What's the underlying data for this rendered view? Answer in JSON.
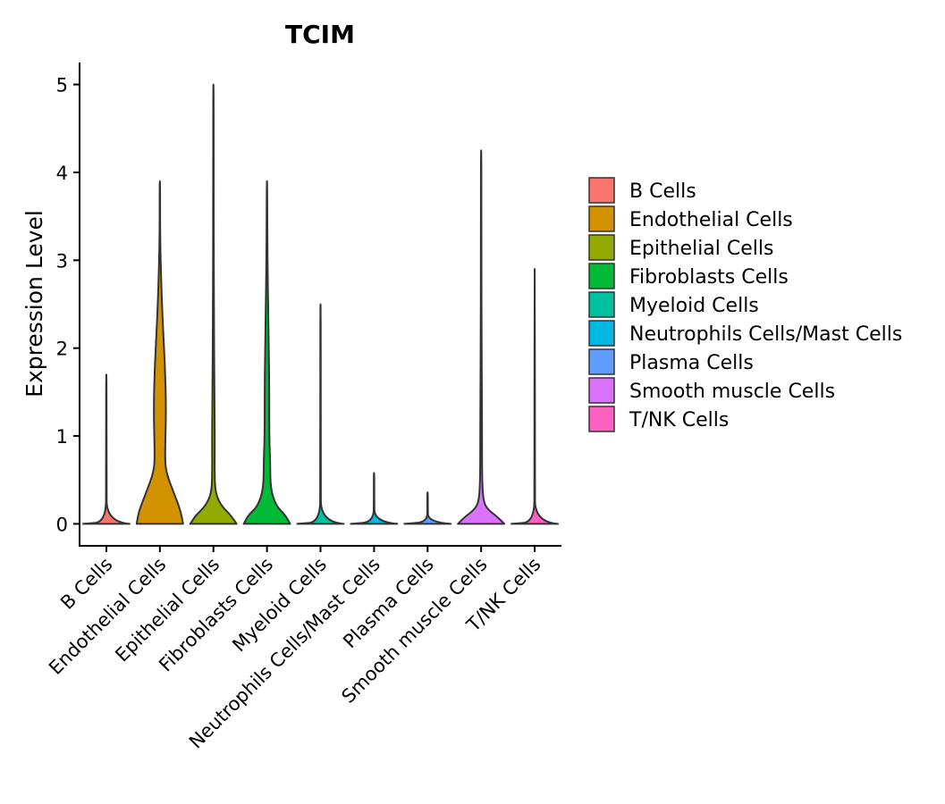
{
  "chart_data": {
    "type": "violin",
    "title": "TCIM",
    "xlabel": "",
    "ylabel": "Expression Level",
    "ylim": [
      -0.25,
      5.25
    ],
    "yticks": [
      0,
      1,
      2,
      3,
      4,
      5
    ],
    "categories": [
      "B Cells",
      "Endothelial Cells",
      "Epithelial Cells",
      "Fibroblasts Cells",
      "Myeloid Cells",
      "Neutrophils Cells/Mast Cells",
      "Plasma Cells",
      "Smooth muscle Cells",
      "T/NK Cells"
    ],
    "colors": [
      "#F8766D",
      "#D39200",
      "#93AA00",
      "#00BA38",
      "#00C19F",
      "#00B9E3",
      "#619CFF",
      "#DB72FB",
      "#FF61C3"
    ],
    "max_values": [
      1.7,
      3.9,
      5.0,
      3.9,
      2.5,
      0.58,
      0.36,
      4.25,
      2.9
    ],
    "density_profiles": [
      [
        [
          0,
          1.0
        ],
        [
          0.02,
          0.02
        ],
        [
          0.5,
          0.01
        ],
        [
          1.7,
          0.01
        ]
      ],
      [
        [
          0,
          1.0
        ],
        [
          0.15,
          0.9
        ],
        [
          0.35,
          0.6
        ],
        [
          0.6,
          0.25
        ],
        [
          0.8,
          0.22
        ],
        [
          1.3,
          0.27
        ],
        [
          1.8,
          0.22
        ],
        [
          2.3,
          0.12
        ],
        [
          2.8,
          0.05
        ],
        [
          3.3,
          0.01
        ],
        [
          3.9,
          0.01
        ]
      ],
      [
        [
          0,
          1.0
        ],
        [
          0.1,
          0.75
        ],
        [
          0.2,
          0.35
        ],
        [
          0.35,
          0.08
        ],
        [
          0.6,
          0.05
        ],
        [
          1.0,
          0.06
        ],
        [
          1.5,
          0.04
        ],
        [
          2.5,
          0.02
        ],
        [
          3.5,
          0.01
        ],
        [
          5.0,
          0.01
        ]
      ],
      [
        [
          0,
          1.0
        ],
        [
          0.1,
          0.8
        ],
        [
          0.2,
          0.4
        ],
        [
          0.4,
          0.15
        ],
        [
          0.7,
          0.14
        ],
        [
          1.0,
          0.1
        ],
        [
          1.5,
          0.1
        ],
        [
          2.0,
          0.08
        ],
        [
          3.0,
          0.02
        ],
        [
          3.9,
          0.01
        ]
      ],
      [
        [
          0,
          1.0
        ],
        [
          0.02,
          0.02
        ],
        [
          0.5,
          0.01
        ],
        [
          2.5,
          0.01
        ]
      ],
      [
        [
          0,
          1.0
        ],
        [
          0.02,
          0.02
        ],
        [
          0.3,
          0.01
        ],
        [
          0.58,
          0.01
        ]
      ],
      [
        [
          0,
          1.0
        ],
        [
          0.02,
          0.02
        ],
        [
          0.2,
          0.01
        ],
        [
          0.36,
          0.01
        ]
      ],
      [
        [
          0,
          1.0
        ],
        [
          0.08,
          0.7
        ],
        [
          0.16,
          0.3
        ],
        [
          0.25,
          0.1
        ],
        [
          0.5,
          0.04
        ],
        [
          1.0,
          0.04
        ],
        [
          1.5,
          0.03
        ],
        [
          2.0,
          0.02
        ],
        [
          3.0,
          0.01
        ],
        [
          4.25,
          0.01
        ]
      ],
      [
        [
          0,
          1.0
        ],
        [
          0.02,
          0.02
        ],
        [
          0.5,
          0.01
        ],
        [
          2.9,
          0.01
        ]
      ]
    ],
    "legend": {
      "position": "right",
      "entries": [
        "B Cells",
        "Endothelial Cells",
        "Epithelial Cells",
        "Fibroblasts Cells",
        "Myeloid Cells",
        "Neutrophils Cells/Mast Cells",
        "Plasma Cells",
        "Smooth muscle Cells",
        "T/NK Cells"
      ]
    }
  }
}
